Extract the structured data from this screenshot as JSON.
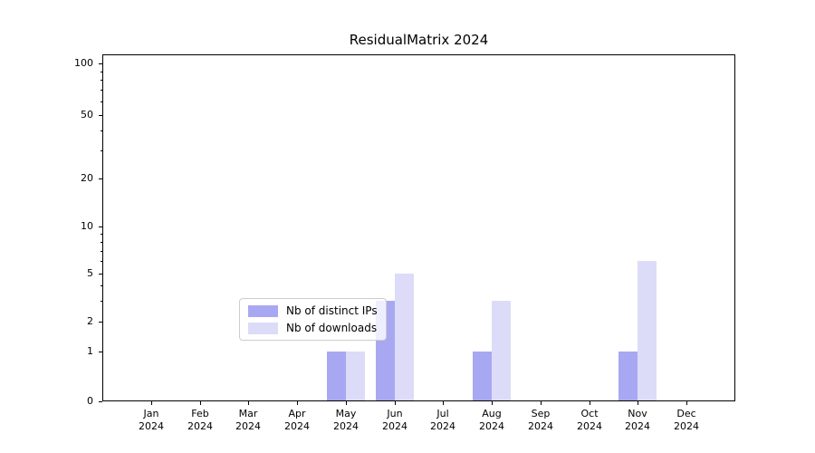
{
  "chart_data": {
    "type": "bar",
    "title": "ResidualMatrix 2024",
    "year_label": "2024",
    "categories": [
      "Jan",
      "Feb",
      "Mar",
      "Apr",
      "May",
      "Jun",
      "Jul",
      "Aug",
      "Sep",
      "Oct",
      "Nov",
      "Dec"
    ],
    "series": [
      {
        "name": "Nb of distinct IPs",
        "color": "#a8a8f2",
        "values": [
          0,
          0,
          0,
          0,
          1,
          3,
          0,
          1,
          0,
          0,
          1,
          0
        ]
      },
      {
        "name": "Nb of downloads",
        "color": "#dcdcf8",
        "values": [
          0,
          0,
          0,
          0,
          1,
          5,
          0,
          3,
          0,
          0,
          6,
          0
        ]
      }
    ],
    "y_axis": {
      "ticks": [
        0,
        1,
        2,
        5,
        10,
        20,
        50,
        100
      ],
      "minor_ticks": [
        3,
        4,
        6,
        7,
        8,
        9,
        30,
        40,
        60,
        70,
        80,
        90
      ],
      "scale": "log-above-1-linear-below",
      "range": [
        0,
        115
      ]
    },
    "x_axis": {
      "label_format": "month over year"
    },
    "legend": {
      "position": "lower center"
    },
    "grid": {
      "major_color": "#d9d9d9",
      "minor_color": "#f0f0f0",
      "vertical": false
    },
    "colors": {
      "background": "#ffffff",
      "spine": "#000000"
    }
  }
}
